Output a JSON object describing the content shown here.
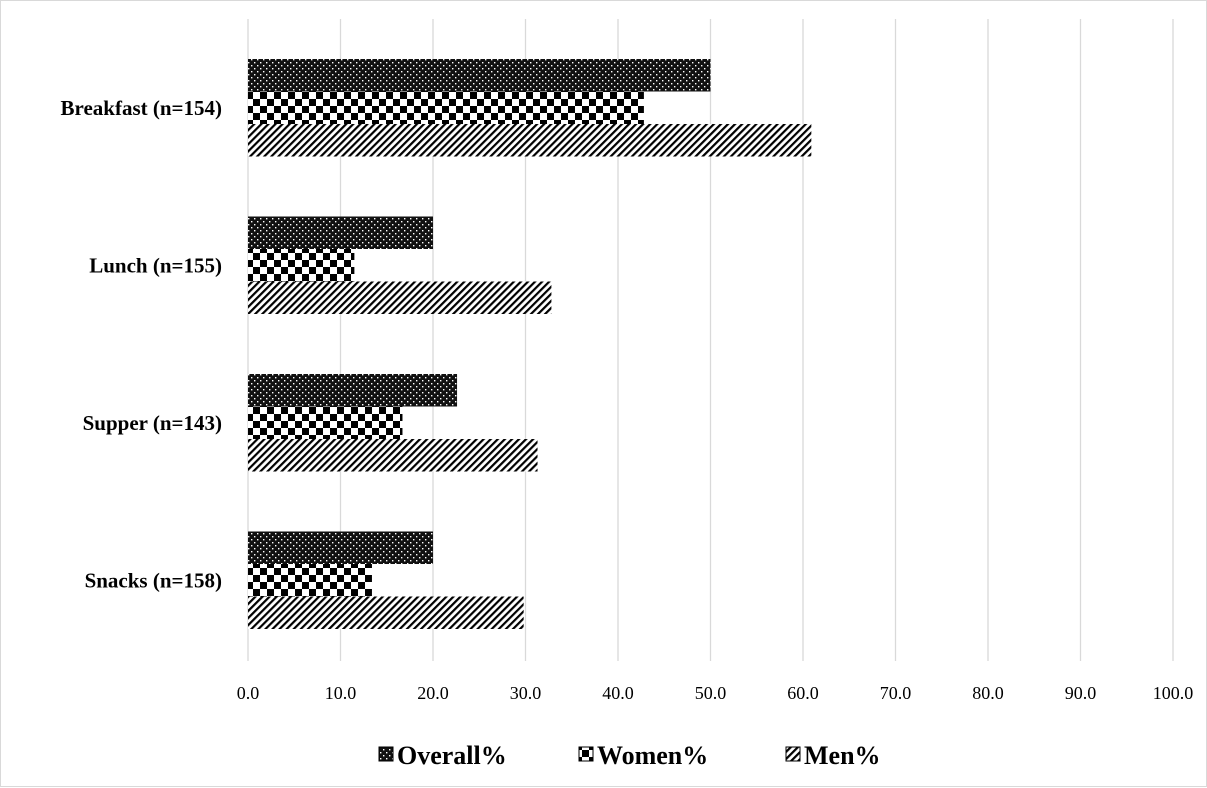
{
  "chart_data": {
    "type": "bar",
    "orientation": "horizontal",
    "categories": [
      "Breakfast (n=154)",
      "Lunch (n=155)",
      "Supper (n=143)",
      "Snacks (n=158)"
    ],
    "series": [
      {
        "name": "Overall%",
        "values": [
          50.0,
          20.0,
          22.6,
          20.0
        ],
        "pattern": "dots",
        "color": "#000000"
      },
      {
        "name": "Women%",
        "values": [
          42.8,
          11.5,
          16.7,
          13.4
        ],
        "pattern": "checker",
        "color": "#000000"
      },
      {
        "name": "Men%",
        "values": [
          60.9,
          32.8,
          31.3,
          29.8
        ],
        "pattern": "diagonal",
        "color": "#000000"
      }
    ],
    "xlim": [
      0,
      100
    ],
    "xticks": [
      "0.0",
      "10.0",
      "20.0",
      "30.0",
      "40.0",
      "50.0",
      "60.0",
      "70.0",
      "80.0",
      "90.0",
      "100.0"
    ],
    "grid": true,
    "legend_position": "bottom",
    "title": "",
    "xlabel": "",
    "ylabel": ""
  }
}
